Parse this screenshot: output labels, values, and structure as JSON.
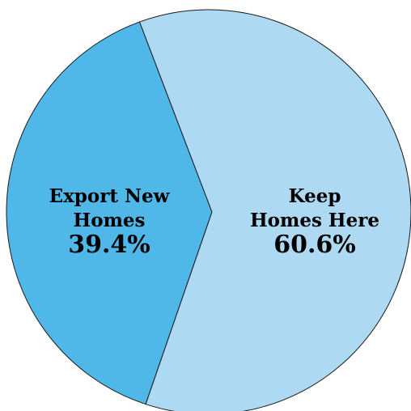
{
  "chart_data": {
    "type": "pie",
    "slices": [
      {
        "name_lines": [
          "Export New",
          "Homes"
        ],
        "value": 39.4,
        "percent_label": "39.4%",
        "color": "#4fb8e8"
      },
      {
        "name_lines": [
          "Keep",
          "Homes Here"
        ],
        "value": 60.6,
        "percent_label": "60.6%",
        "color": "#aed9f2"
      }
    ],
    "stroke_color": "#1a1a1a",
    "legend": "none"
  }
}
